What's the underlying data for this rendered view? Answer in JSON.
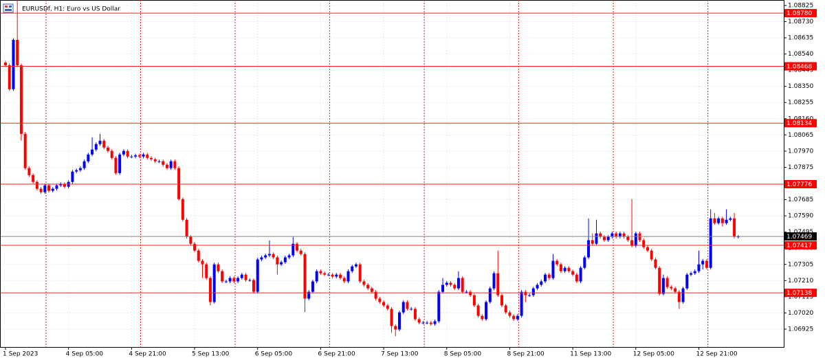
{
  "chart_data": {
    "type": "candlestick",
    "title": "EURUSDf, H1:  Euro vs US Dollar",
    "up_color": "#0000ff",
    "down_color": "#ff0000",
    "grid": true,
    "ylim": [
      1.0682,
      1.08857
    ],
    "yticks": [
      1.08825,
      {
        "value": 1.0873,
        "label": "1.08730"
      },
      1.08635,
      {
        "value": 1.0854,
        "label": "1.08540"
      },
      1.08445,
      {
        "value": 1.0835,
        "label": "1.08350"
      },
      1.08255,
      {
        "value": 1.0816,
        "label": "1.08160"
      },
      1.08065,
      {
        "value": 1.0797,
        "label": "1.07970"
      },
      1.07875,
      {
        "value": 1.0778,
        "label": "1.07780"
      },
      1.07685,
      {
        "value": 1.0759,
        "label": "1.07590"
      },
      1.07495,
      {
        "value": 1.074,
        "label": "1.07400"
      },
      1.07305,
      {
        "value": 1.0721,
        "label": "1.07210"
      },
      1.07115,
      {
        "value": 1.0702,
        "label": "1.07020"
      },
      1.06925
    ],
    "xticks": [
      {
        "value": 0,
        "label": "1 Sep 2023"
      },
      {
        "value": 16,
        "label": "4 Sep 05:00"
      },
      {
        "value": 32,
        "label": "4 Sep 21:00"
      },
      {
        "value": 48,
        "label": "5 Sep 13:00"
      },
      {
        "value": 64,
        "label": "6 Sep 05:00"
      },
      {
        "value": 80,
        "label": "6 Sep 21:00"
      },
      {
        "value": 96,
        "label": "7 Sep 13:00"
      },
      {
        "value": 112,
        "label": "8 Sep 05:00"
      },
      {
        "value": 128,
        "label": "8 Sep 21:00"
      },
      {
        "value": 144,
        "label": "11 Sep 13:00"
      },
      {
        "value": 160,
        "label": "12 Sep 05:00"
      },
      {
        "value": 176,
        "label": "12 Sep 21:00"
      }
    ],
    "levels": [
      {
        "value": 1.0878,
        "label": "1.08780"
      },
      1.08468,
      1.08134,
      1.07776,
      1.07417,
      1.07138
    ],
    "current_price": 1.07469,
    "ohlc": [
      [
        1.0849,
        1.085,
        1.08464,
        1.08474
      ],
      [
        1.08474,
        1.08484,
        1.08323,
        1.08333
      ],
      [
        1.08333,
        1.08633,
        1.08323,
        1.08623
      ],
      [
        1.08623,
        1.08857,
        1.08464,
        1.08474
      ],
      [
        1.08474,
        1.08484,
        1.08031,
        1.08071
      ],
      [
        1.08071,
        1.08081,
        1.0786,
        1.0787
      ],
      [
        1.0787,
        1.0788,
        1.07819,
        1.07829
      ],
      [
        1.07829,
        1.07839,
        1.07779,
        1.07789
      ],
      [
        1.07789,
        1.07799,
        1.07739,
        1.07749
      ],
      [
        1.07749,
        1.07759,
        1.07719,
        1.07729
      ],
      [
        1.07729,
        1.07779,
        1.07719,
        1.07769
      ],
      [
        1.07769,
        1.07779,
        1.07727,
        1.07737
      ],
      [
        1.07737,
        1.07759,
        1.07727,
        1.07749
      ],
      [
        1.07749,
        1.07779,
        1.07739,
        1.07769
      ],
      [
        1.07769,
        1.07787,
        1.07759,
        1.07777
      ],
      [
        1.07777,
        1.07787,
        1.07751,
        1.07761
      ],
      [
        1.07761,
        1.07799,
        1.07751,
        1.07789
      ],
      [
        1.07789,
        1.0786,
        1.07779,
        1.0785
      ],
      [
        1.0785,
        1.07868,
        1.0784,
        1.07858
      ],
      [
        1.07858,
        1.0788,
        1.07848,
        1.0787
      ],
      [
        1.0787,
        1.0792,
        1.0786,
        1.0791
      ],
      [
        1.0791,
        1.0796,
        1.079,
        1.0795
      ],
      [
        1.0795,
        1.08051,
        1.0794,
        1.07979
      ],
      [
        1.07979,
        1.08021,
        1.07969,
        1.08011
      ],
      [
        1.08011,
        1.08071,
        1.08001,
        1.08031
      ],
      [
        1.08031,
        1.08041,
        1.07981,
        1.07991
      ],
      [
        1.07991,
        1.08001,
        1.07961,
        1.07971
      ],
      [
        1.07971,
        1.07981,
        1.0792,
        1.0793
      ],
      [
        1.0793,
        1.0794,
        1.07831,
        1.07841
      ],
      [
        1.07841,
        1.0796,
        1.07831,
        1.0795
      ],
      [
        1.0795,
        1.07981,
        1.0794,
        1.07971
      ],
      [
        1.07971,
        1.07981,
        1.07928,
        1.07938
      ],
      [
        1.07938,
        1.07948,
        1.07928,
        1.07938
      ],
      [
        1.07938,
        1.07955,
        1.07928,
        1.07945
      ],
      [
        1.07945,
        1.07955,
        1.07928,
        1.07938
      ],
      [
        1.07938,
        1.0796,
        1.07928,
        1.0795
      ],
      [
        1.0795,
        1.0796,
        1.0792,
        1.0793
      ],
      [
        1.0793,
        1.0794,
        1.07912,
        1.07922
      ],
      [
        1.07922,
        1.07932,
        1.079,
        1.0791
      ],
      [
        1.0791,
        1.0792,
        1.079,
        1.0791
      ],
      [
        1.0791,
        1.0792,
        1.0788,
        1.0789
      ],
      [
        1.0789,
        1.079,
        1.0786,
        1.0787
      ],
      [
        1.0787,
        1.0792,
        1.0786,
        1.0791
      ],
      [
        1.0791,
        1.0792,
        1.0786,
        1.0787
      ],
      [
        1.0787,
        1.0788,
        1.07678,
        1.07688
      ],
      [
        1.07688,
        1.07698,
        1.07557,
        1.07567
      ],
      [
        1.07567,
        1.07577,
        1.07457,
        1.07467
      ],
      [
        1.07467,
        1.07477,
        1.07416,
        1.07426
      ],
      [
        1.07426,
        1.07436,
        1.07376,
        1.07386
      ],
      [
        1.07386,
        1.07396,
        1.07316,
        1.07326
      ],
      [
        1.07326,
        1.07336,
        1.07225,
        1.07305
      ],
      [
        1.07305,
        1.07315,
        1.07215,
        1.07225
      ],
      [
        1.07225,
        1.07235,
        1.07064,
        1.07084
      ],
      [
        1.07084,
        1.07315,
        1.07074,
        1.07305
      ],
      [
        1.07305,
        1.07315,
        1.07255,
        1.07265
      ],
      [
        1.07265,
        1.07275,
        1.07195,
        1.07205
      ],
      [
        1.07205,
        1.07215,
        1.07195,
        1.07205
      ],
      [
        1.07205,
        1.07235,
        1.07195,
        1.07225
      ],
      [
        1.07225,
        1.07235,
        1.07195,
        1.07205
      ],
      [
        1.07205,
        1.07235,
        1.07195,
        1.07225
      ],
      [
        1.07225,
        1.07255,
        1.07215,
        1.07245
      ],
      [
        1.07245,
        1.07255,
        1.07203,
        1.07213
      ],
      [
        1.07213,
        1.07223,
        1.07203,
        1.07213
      ],
      [
        1.07213,
        1.07223,
        1.07134,
        1.07144
      ],
      [
        1.07144,
        1.07344,
        1.07134,
        1.07334
      ],
      [
        1.07334,
        1.07356,
        1.07324,
        1.07346
      ],
      [
        1.07346,
        1.07368,
        1.07336,
        1.07358
      ],
      [
        1.07358,
        1.07446,
        1.07348,
        1.07366
      ],
      [
        1.07366,
        1.07376,
        1.07336,
        1.07346
      ],
      [
        1.07346,
        1.07356,
        1.07245,
        1.07305
      ],
      [
        1.07305,
        1.07328,
        1.07295,
        1.07318
      ],
      [
        1.07318,
        1.07356,
        1.07308,
        1.07346
      ],
      [
        1.07346,
        1.07368,
        1.07336,
        1.07358
      ],
      [
        1.07358,
        1.07466,
        1.07348,
        1.07426
      ],
      [
        1.07426,
        1.07436,
        1.07376,
        1.07386
      ],
      [
        1.07386,
        1.07396,
        1.07356,
        1.07366
      ],
      [
        1.07366,
        1.07376,
        1.07024,
        1.07104
      ],
      [
        1.07104,
        1.07154,
        1.07094,
        1.07144
      ],
      [
        1.07144,
        1.07215,
        1.07134,
        1.07205
      ],
      [
        1.07205,
        1.07275,
        1.07195,
        1.07265
      ],
      [
        1.07265,
        1.07275,
        1.07243,
        1.07253
      ],
      [
        1.07253,
        1.07263,
        1.07235,
        1.07245
      ],
      [
        1.07245,
        1.07255,
        1.07235,
        1.07245
      ],
      [
        1.07245,
        1.07255,
        1.07223,
        1.07233
      ],
      [
        1.07233,
        1.07255,
        1.07223,
        1.07245
      ],
      [
        1.07245,
        1.07255,
        1.07215,
        1.07225
      ],
      [
        1.07225,
        1.07235,
        1.07195,
        1.07205
      ],
      [
        1.07205,
        1.07275,
        1.07195,
        1.07265
      ],
      [
        1.07265,
        1.07303,
        1.07255,
        1.07293
      ],
      [
        1.07293,
        1.07315,
        1.07283,
        1.07305
      ],
      [
        1.07305,
        1.07315,
        1.07195,
        1.07205
      ],
      [
        1.07205,
        1.07215,
        1.07175,
        1.07185
      ],
      [
        1.07185,
        1.07195,
        1.07154,
        1.07164
      ],
      [
        1.07164,
        1.07174,
        1.07134,
        1.07144
      ],
      [
        1.07144,
        1.07154,
        1.07094,
        1.07104
      ],
      [
        1.07104,
        1.07114,
        1.07074,
        1.07084
      ],
      [
        1.07084,
        1.07094,
        1.07054,
        1.07064
      ],
      [
        1.07064,
        1.07074,
        1.07034,
        1.07044
      ],
      [
        1.07044,
        1.07054,
        1.06903,
        1.06943
      ],
      [
        1.06943,
        1.06953,
        1.06883,
        1.06923
      ],
      [
        1.06923,
        1.07033,
        1.06913,
        1.07023
      ],
      [
        1.07023,
        1.07094,
        1.07013,
        1.07084
      ],
      [
        1.07084,
        1.07094,
        1.07034,
        1.07044
      ],
      [
        1.07044,
        1.07054,
        1.07034,
        1.07044
      ],
      [
        1.07044,
        1.07054,
        1.06973,
        1.06983
      ],
      [
        1.06983,
        1.06993,
        1.06953,
        1.06963
      ],
      [
        1.06963,
        1.06973,
        1.06953,
        1.06963
      ],
      [
        1.06963,
        1.06973,
        1.06953,
        1.06963
      ],
      [
        1.06963,
        1.06973,
        1.06945,
        1.06955
      ],
      [
        1.06955,
        1.06981,
        1.06945,
        1.06971
      ],
      [
        1.06971,
        1.07154,
        1.06961,
        1.07144
      ],
      [
        1.07144,
        1.07225,
        1.07134,
        1.07185
      ],
      [
        1.07185,
        1.07207,
        1.07175,
        1.07197
      ],
      [
        1.07197,
        1.07207,
        1.07175,
        1.07185
      ],
      [
        1.07185,
        1.07195,
        1.07154,
        1.07164
      ],
      [
        1.07164,
        1.07265,
        1.07154,
        1.07225
      ],
      [
        1.07225,
        1.07235,
        1.07134,
        1.07144
      ],
      [
        1.07144,
        1.07154,
        1.07134,
        1.07144
      ],
      [
        1.07144,
        1.07154,
        1.07114,
        1.07124
      ],
      [
        1.07124,
        1.07134,
        1.07054,
        1.07064
      ],
      [
        1.07064,
        1.07074,
        1.06993,
        1.07003
      ],
      [
        1.07003,
        1.07013,
        1.06973,
        1.06983
      ],
      [
        1.06983,
        1.07094,
        1.06973,
        1.07084
      ],
      [
        1.07084,
        1.07174,
        1.07074,
        1.07164
      ],
      [
        1.07164,
        1.07263,
        1.07154,
        1.07253
      ],
      [
        1.07253,
        1.07386,
        1.07114,
        1.07124
      ],
      [
        1.07124,
        1.07134,
        1.07054,
        1.07064
      ],
      [
        1.07064,
        1.07074,
        1.07013,
        1.07023
      ],
      [
        1.07023,
        1.07033,
        1.06993,
        1.07003
      ],
      [
        1.07003,
        1.07013,
        1.06973,
        1.06983
      ],
      [
        1.06983,
        1.07013,
        1.06973,
        1.07003
      ],
      [
        1.07003,
        1.07154,
        1.06993,
        1.07144
      ],
      [
        1.07144,
        1.07154,
        1.07084,
        1.07124
      ],
      [
        1.07124,
        1.07134,
        1.07114,
        1.07124
      ],
      [
        1.07124,
        1.07174,
        1.07114,
        1.07164
      ],
      [
        1.07164,
        1.07195,
        1.07154,
        1.07185
      ],
      [
        1.07185,
        1.07215,
        1.07175,
        1.07205
      ],
      [
        1.07205,
        1.07255,
        1.07195,
        1.07245
      ],
      [
        1.07245,
        1.07255,
        1.07215,
        1.07225
      ],
      [
        1.07225,
        1.07366,
        1.07215,
        1.07326
      ],
      [
        1.07326,
        1.07336,
        1.07295,
        1.07305
      ],
      [
        1.07305,
        1.07315,
        1.07255,
        1.07265
      ],
      [
        1.07265,
        1.07295,
        1.07255,
        1.07285
      ],
      [
        1.07285,
        1.07295,
        1.07255,
        1.07265
      ],
      [
        1.07265,
        1.07275,
        1.07235,
        1.07245
      ],
      [
        1.07245,
        1.07255,
        1.07195,
        1.07205
      ],
      [
        1.07205,
        1.07295,
        1.07195,
        1.07285
      ],
      [
        1.07285,
        1.07356,
        1.07275,
        1.07346
      ],
      [
        1.07346,
        1.07575,
        1.07336,
        1.07447
      ],
      [
        1.07447,
        1.07487,
        1.07416,
        1.07426
      ],
      [
        1.07426,
        1.07567,
        1.07416,
        1.07487
      ],
      [
        1.07487,
        1.07497,
        1.07457,
        1.07467
      ],
      [
        1.07467,
        1.07477,
        1.07437,
        1.07447
      ],
      [
        1.07447,
        1.07477,
        1.07437,
        1.07467
      ],
      [
        1.07467,
        1.07497,
        1.07457,
        1.07487
      ],
      [
        1.07487,
        1.07497,
        1.07457,
        1.07467
      ],
      [
        1.07467,
        1.07497,
        1.07457,
        1.07487
      ],
      [
        1.07487,
        1.07497,
        1.07457,
        1.07467
      ],
      [
        1.07467,
        1.07477,
        1.07437,
        1.07447
      ],
      [
        1.07447,
        1.07688,
        1.07404,
        1.07414
      ],
      [
        1.07414,
        1.07497,
        1.07404,
        1.07487
      ],
      [
        1.07487,
        1.07497,
        1.07437,
        1.07447
      ],
      [
        1.07447,
        1.07457,
        1.07396,
        1.07406
      ],
      [
        1.07406,
        1.07416,
        1.07376,
        1.07386
      ],
      [
        1.07386,
        1.07396,
        1.07324,
        1.07334
      ],
      [
        1.07334,
        1.07344,
        1.07275,
        1.07285
      ],
      [
        1.07285,
        1.07295,
        1.07122,
        1.07132
      ],
      [
        1.07132,
        1.07245,
        1.07122,
        1.07225
      ],
      [
        1.07225,
        1.07235,
        1.07162,
        1.07172
      ],
      [
        1.07172,
        1.07182,
        1.07154,
        1.07164
      ],
      [
        1.07164,
        1.07174,
        1.07134,
        1.07144
      ],
      [
        1.07144,
        1.07154,
        1.07044,
        1.07084
      ],
      [
        1.07084,
        1.07174,
        1.07074,
        1.07164
      ],
      [
        1.07164,
        1.07255,
        1.07154,
        1.07245
      ],
      [
        1.07245,
        1.07263,
        1.07235,
        1.07253
      ],
      [
        1.07253,
        1.07275,
        1.07243,
        1.07265
      ],
      [
        1.07265,
        1.07386,
        1.07255,
        1.07305
      ],
      [
        1.07305,
        1.07336,
        1.07275,
        1.07326
      ],
      [
        1.07326,
        1.07336,
        1.07275,
        1.07285
      ],
      [
        1.07285,
        1.07628,
        1.07275,
        1.07575
      ],
      [
        1.07575,
        1.07607,
        1.07537,
        1.07547
      ],
      [
        1.07547,
        1.07585,
        1.07537,
        1.07575
      ],
      [
        1.07575,
        1.07585,
        1.07527,
        1.07547
      ],
      [
        1.07547,
        1.07628,
        1.07537,
        1.07567
      ],
      [
        1.07567,
        1.07585,
        1.07557,
        1.07575
      ],
      [
        1.07575,
        1.07607,
        1.07457,
        1.07467
      ],
      [
        1.07467,
        1.07477,
        1.07457,
        1.07469
      ]
    ]
  }
}
